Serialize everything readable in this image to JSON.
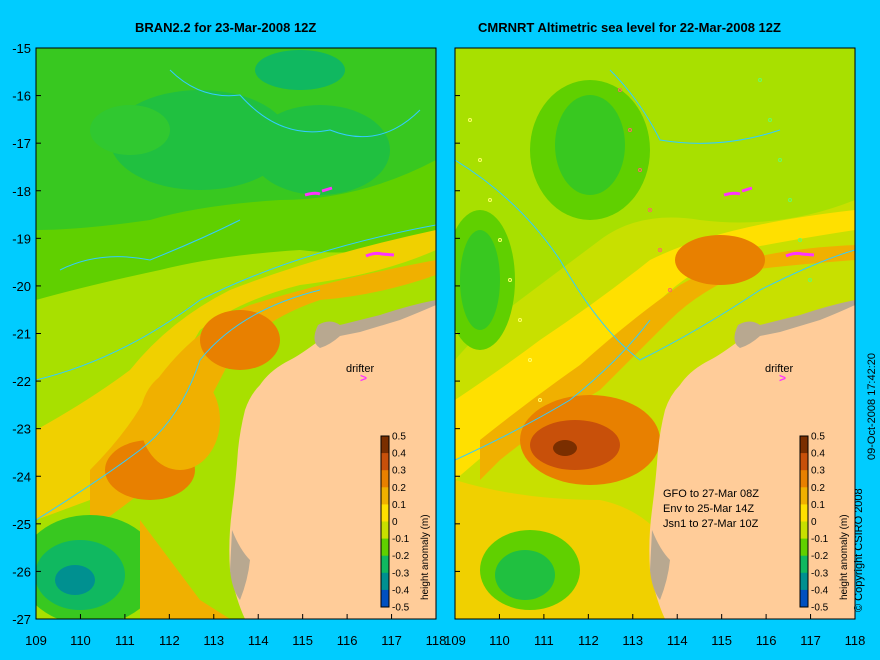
{
  "left_panel": {
    "title": "BRAN2.2 for 23-Mar-2008 12Z",
    "drifter_label": "drifter",
    "drifter_marker": ">",
    "colorbar_label": "height anomaly (m)"
  },
  "right_panel": {
    "title": "CMRNRT Altimetric sea level  for 22-Mar-2008 12Z",
    "drifter_label": "drifter",
    "drifter_marker": ">",
    "colorbar_label": "height anomaly (m)",
    "satellite_notes": [
      "GFO to 27-Mar 08Z",
      "Env to 25-Mar 14Z",
      "Jsn1 to 27-Mar 10Z"
    ]
  },
  "x_ticks": [
    "109",
    "110",
    "111",
    "112",
    "113",
    "114",
    "115",
    "116",
    "117",
    "118"
  ],
  "y_ticks": [
    "-15",
    "-16",
    "-17",
    "-18",
    "-19",
    "-20",
    "-21",
    "-22",
    "-23",
    "-24",
    "-25",
    "-26",
    "-27"
  ],
  "colorbar_ticks": [
    "0.5",
    "0.4",
    "0.3",
    "0.2",
    "0.1",
    "0",
    "-0.1",
    "-0.2",
    "-0.3",
    "-0.4",
    "-0.5"
  ],
  "colorbar_colors": [
    "#7a2e00",
    "#c8500a",
    "#e88000",
    "#f0b000",
    "#ffe000",
    "#c8e000",
    "#60d000",
    "#10b860",
    "#009090",
    "#0050c0",
    "#0010a0"
  ],
  "copyright": "© Copyright CSIRO 2008",
  "timestamp": "09-Oct-2008 17:42:20",
  "colors": {
    "background": "#00ccff",
    "land": "#ffcc99",
    "coast_gray": "#b8a890",
    "contour": "#33ccff",
    "drifter": "#ff33ff"
  }
}
